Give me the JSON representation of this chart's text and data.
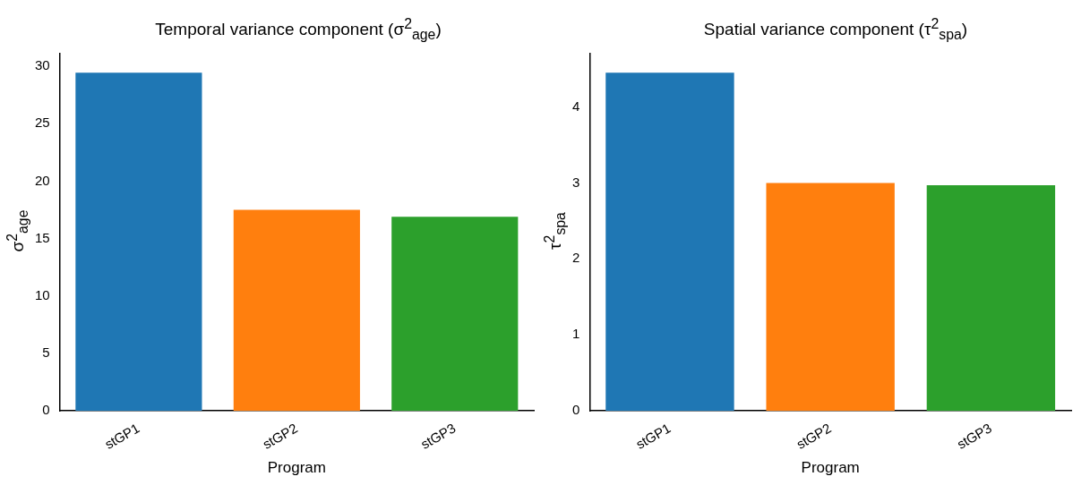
{
  "chart_data": [
    {
      "type": "bar",
      "title": "Temporal variance component (σ$^{2}$$_{age}$)",
      "xlabel": "Program",
      "ylabel": "σ$^{2}$$_{age}$",
      "categories": [
        "stGP1",
        "stGP2",
        "stGP3"
      ],
      "values": [
        29.45,
        17.5,
        16.9
      ],
      "colors": [
        "#1f77b4",
        "#ff7f0e",
        "#2ca02c"
      ],
      "ylim": [
        0,
        31.1
      ],
      "yticks": [
        0,
        5,
        10,
        15,
        20,
        25,
        30
      ],
      "grid": false
    },
    {
      "type": "bar",
      "title": "Spatial variance component (τ$^{2}$$_{spa}$)",
      "xlabel": "Program",
      "ylabel": "τ$^{2}$$_{spa}$",
      "categories": [
        "stGP1",
        "stGP2",
        "stGP3"
      ],
      "values": [
        4.45,
        3.0,
        2.97
      ],
      "colors": [
        "#1f77b4",
        "#ff7f0e",
        "#2ca02c"
      ],
      "ylim": [
        0,
        4.7
      ],
      "yticks": [
        0,
        1,
        2,
        3,
        4
      ],
      "grid": false
    }
  ]
}
